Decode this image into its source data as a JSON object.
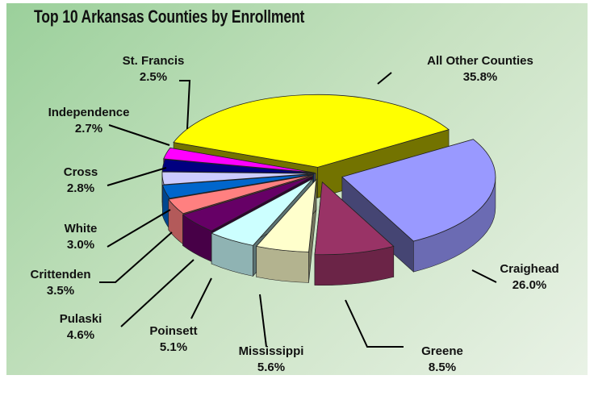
{
  "chart_data": {
    "type": "pie",
    "title": "Top 10 Arkansas Counties by Enrollment",
    "slices": [
      {
        "name": "All Other Counties",
        "label": "35.8%",
        "value": 35.8,
        "color": "#ffff00"
      },
      {
        "name": "Craighead",
        "label": "26.0%",
        "value": 26.0,
        "color": "#9999ff"
      },
      {
        "name": "Greene",
        "label": "8.5%",
        "value": 8.5,
        "color": "#993366"
      },
      {
        "name": "Mississippi",
        "label": "5.6%",
        "value": 5.6,
        "color": "#ffffcc"
      },
      {
        "name": "Poinsett",
        "label": "5.1%",
        "value": 5.1,
        "color": "#ccffff"
      },
      {
        "name": "Pulaski",
        "label": "4.6%",
        "value": 4.6,
        "color": "#660066"
      },
      {
        "name": "Crittenden",
        "label": "3.5%",
        "value": 3.5,
        "color": "#ff8080"
      },
      {
        "name": "White",
        "label": "3.0%",
        "value": 3.0,
        "color": "#0066cc"
      },
      {
        "name": "Cross",
        "label": "2.8%",
        "value": 2.8,
        "color": "#ccccff"
      },
      {
        "name": "Independence",
        "label": "2.7%",
        "value": 2.7,
        "color": "#000080"
      },
      {
        "name": "St. Francis",
        "label": "2.5%",
        "value": 2.5,
        "color": "#ff00ff"
      }
    ],
    "legend": "none",
    "style": "3d-exploded"
  }
}
